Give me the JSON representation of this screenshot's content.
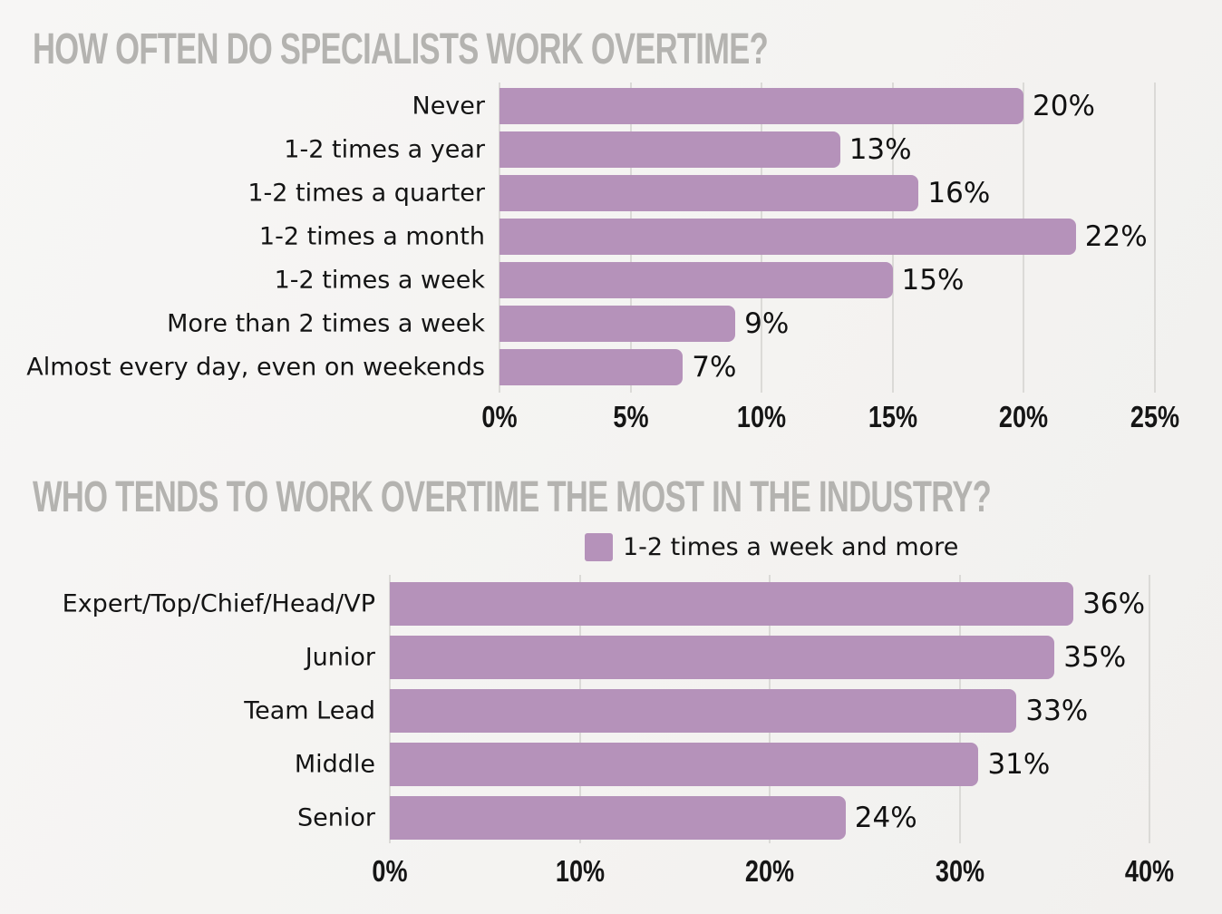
{
  "page": {
    "background": "#f4f3f1"
  },
  "colors": {
    "bar_purple": "#b592ba",
    "title_gray": "#b4b3b0",
    "grid_gray": "#dbdad7",
    "text_black": "#141414"
  },
  "chart_data": [
    {
      "type": "bar",
      "orientation": "horizontal",
      "title": "HOW OFTEN DO SPECIALISTS WORK OVERTIME?",
      "categories": [
        "Never",
        "1-2 times a year",
        "1-2 times a quarter",
        "1-2 times a month",
        "1-2 times a week",
        "More than 2 times a week",
        "Almost every day, even on weekends"
      ],
      "values": [
        20,
        13,
        16,
        22,
        15,
        9,
        7
      ],
      "value_labels": [
        "20%",
        "13%",
        "16%",
        "22%",
        "15%",
        "9%",
        "7%"
      ],
      "xlim": [
        0,
        25
      ],
      "xtick_values": [
        0,
        5,
        10,
        15,
        20,
        25
      ],
      "xtick_labels": [
        "0%",
        "5%",
        "10%",
        "15%",
        "20%",
        "25%"
      ],
      "grid": "vertical",
      "legend": null
    },
    {
      "type": "bar",
      "orientation": "horizontal",
      "title": "WHO TENDS TO WORK OVERTIME THE MOST IN THE INDUSTRY?",
      "legend": "1-2 times a week and more",
      "categories": [
        "Expert/Top/Chief/Head/VP",
        "Junior",
        "Team Lead",
        "Middle",
        "Senior"
      ],
      "values": [
        36,
        35,
        33,
        31,
        24
      ],
      "value_labels": [
        "36%",
        "35%",
        "33%",
        "31%",
        "24%"
      ],
      "xlim": [
        0,
        40
      ],
      "xtick_values": [
        0,
        10,
        20,
        30,
        40
      ],
      "xtick_labels": [
        "0%",
        "10%",
        "20%",
        "30%",
        "40%"
      ],
      "grid": "vertical"
    }
  ]
}
